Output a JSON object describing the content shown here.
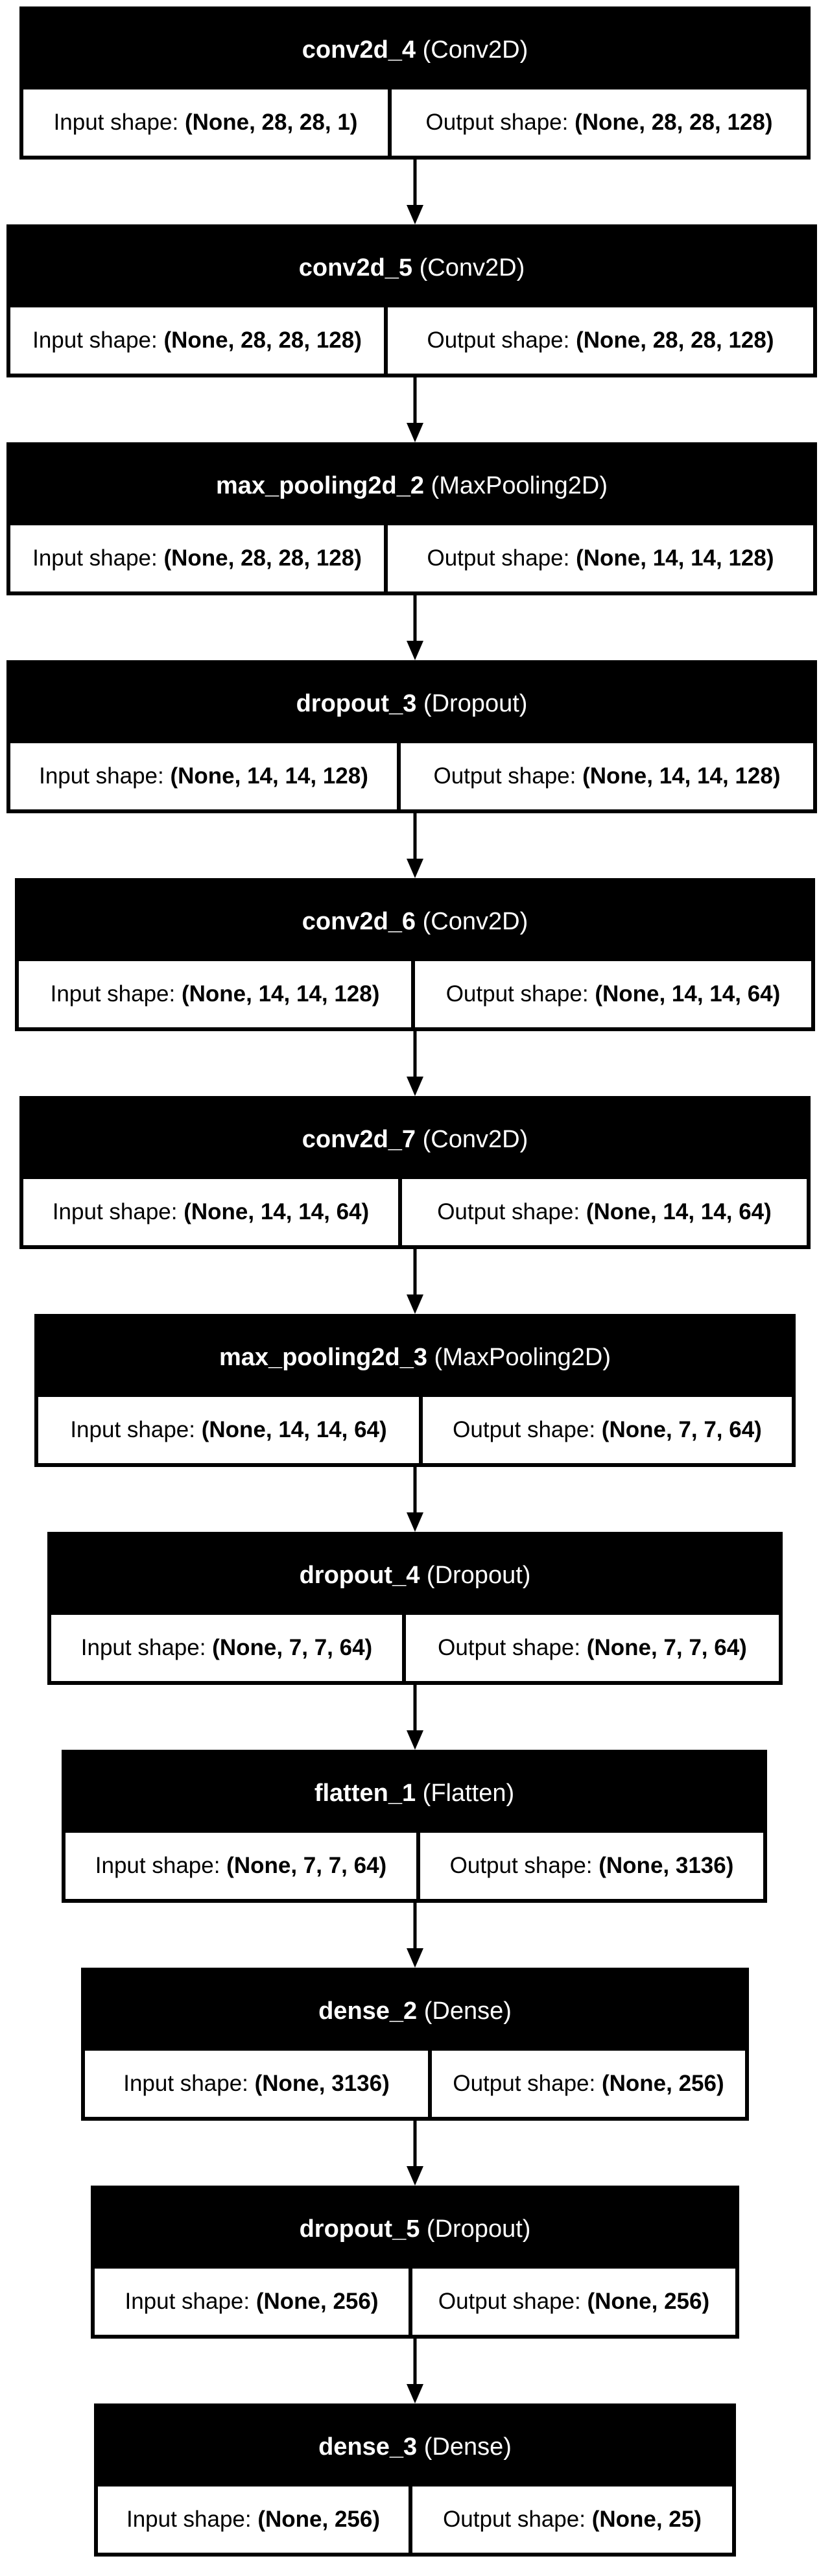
{
  "input_shape_label": "Input shape:",
  "output_shape_label": "Output shape:",
  "colors": {
    "header_background": "#000000",
    "header_text": "#ffffff",
    "body_background": "#ffffff",
    "border": "#000000"
  },
  "layers": [
    {
      "name": "conv2d_4",
      "type": "(Conv2D)",
      "input_shape": "(None, 28, 28, 1)",
      "output_shape": "(None, 28, 28, 128)"
    },
    {
      "name": "conv2d_5",
      "type": "(Conv2D)",
      "input_shape": "(None, 28, 28, 128)",
      "output_shape": "(None, 28, 28, 128)"
    },
    {
      "name": "max_pooling2d_2",
      "type": "(MaxPooling2D)",
      "input_shape": "(None, 28, 28, 128)",
      "output_shape": "(None, 14, 14, 128)"
    },
    {
      "name": "dropout_3",
      "type": "(Dropout)",
      "input_shape": "(None, 14, 14, 128)",
      "output_shape": "(None, 14, 14, 128)"
    },
    {
      "name": "conv2d_6",
      "type": "(Conv2D)",
      "input_shape": "(None, 14, 14, 128)",
      "output_shape": "(None, 14, 14, 64)"
    },
    {
      "name": "conv2d_7",
      "type": "(Conv2D)",
      "input_shape": "(None, 14, 14, 64)",
      "output_shape": "(None, 14, 14, 64)"
    },
    {
      "name": "max_pooling2d_3",
      "type": "(MaxPooling2D)",
      "input_shape": "(None, 14, 14, 64)",
      "output_shape": "(None, 7, 7, 64)"
    },
    {
      "name": "dropout_4",
      "type": "(Dropout)",
      "input_shape": "(None, 7, 7, 64)",
      "output_shape": "(None, 7, 7, 64)"
    },
    {
      "name": "flatten_1",
      "type": "(Flatten)",
      "input_shape": "(None, 7, 7, 64)",
      "output_shape": "(None, 3136)"
    },
    {
      "name": "dense_2",
      "type": "(Dense)",
      "input_shape": "(None, 3136)",
      "output_shape": "(None, 256)"
    },
    {
      "name": "dropout_5",
      "type": "(Dropout)",
      "input_shape": "(None, 256)",
      "output_shape": "(None, 256)"
    },
    {
      "name": "dense_3",
      "type": "(Dense)",
      "input_shape": "(None, 256)",
      "output_shape": "(None, 25)"
    }
  ]
}
